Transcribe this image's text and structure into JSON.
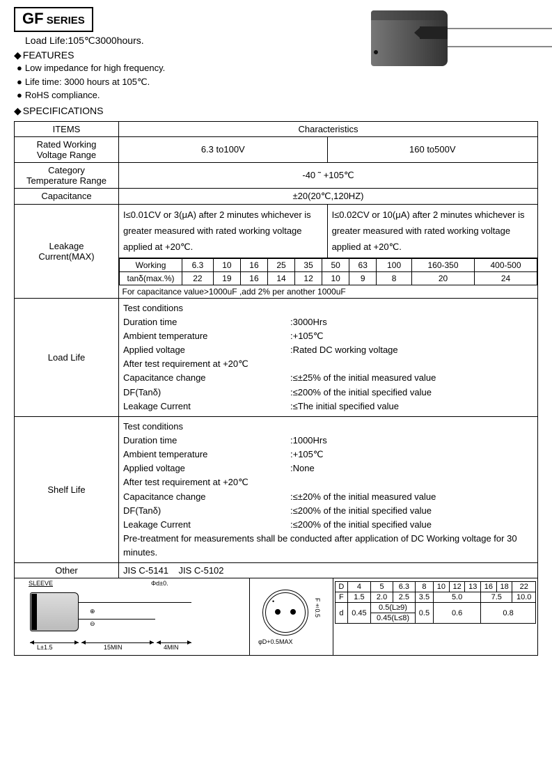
{
  "header": {
    "series_prefix": "GF",
    "series_suffix": " SERIES",
    "load_life_line": "Load Life:105℃3000hours.",
    "features_title": "FEATURES",
    "features": [
      "Low impedance for high frequency.",
      "Life time: 3000 hours at 105℃.",
      "RoHS compliance."
    ],
    "specs_title": "SPECIFICATIONS"
  },
  "spec": {
    "items_header": "ITEMS",
    "char_header": "Characteristics",
    "rows": {
      "rwvr_label": "Rated Working\nVoltage Range",
      "rwvr_v1": "6.3 to100V",
      "rwvr_v2": "160 to500V",
      "ctr_label": "Category\nTemperature Range",
      "ctr_val": "-40 ˜ +105℃",
      "cap_label": "Capacitance",
      "cap_val": "±20(20℃,120HZ)",
      "leak_label": "Leakage\nCurrent(MAX)",
      "leak_v1": "I≤0.01CV or 3(μA) after 2 minutes whichever is greater measured with rated working voltage applied at +20℃.",
      "leak_v2": "I≤0.02CV or 10(μA) after 2 minutes whichever is greater measured with rated working voltage applied at +20℃.",
      "tand_working": "Working",
      "tand_row_label": "tanδ(max.%)",
      "tand_headers": [
        "6.3",
        "10",
        "16",
        "25",
        "35",
        "50",
        "63",
        "100",
        "160-350",
        "400-500"
      ],
      "tand_values": [
        "22",
        "19",
        "16",
        "14",
        "12",
        "10",
        "9",
        "8",
        "20",
        "24"
      ],
      "tand_note": "For capacitance value>1000uF ,add 2% per another 1000uF",
      "load_label": "Load Life",
      "load_lines": [
        [
          "Test conditions",
          ""
        ],
        [
          "Duration time",
          ":3000Hrs"
        ],
        [
          "Ambient temperature",
          ":+105℃"
        ],
        [
          "Applied voltage",
          ":Rated DC working voltage"
        ],
        [
          "After test requirement at +20℃",
          ""
        ],
        [
          "Capacitance change",
          ":≤±25% of  the initial measured value"
        ],
        [
          "DF(Tanδ)",
          ":≤200% of  the initial specified value"
        ],
        [
          "Leakage Current",
          ":≤The initial specified value"
        ]
      ],
      "shelf_label": "Shelf Life",
      "shelf_lines": [
        [
          "Test conditions",
          ""
        ],
        [
          "Duration time",
          ":1000Hrs"
        ],
        [
          "Ambient temperature",
          ":+105℃"
        ],
        [
          "Applied voltage",
          ":None"
        ],
        [
          "After test requirement at +20℃",
          ""
        ],
        [
          "Capacitance change",
          ":≤±20% of  the initial measured value"
        ],
        [
          "DF(Tanδ)",
          ":≤200% of  the initial specified value"
        ],
        [
          "Leakage Current",
          ":≤200% of  the initial specified value"
        ]
      ],
      "shelf_note": "Pre-treatment for measurements shall be conducted after application of DC Working voltage for 30 minutes.",
      "other_label": "Other",
      "other_val": "JIS C-5141    JIS C-5102"
    }
  },
  "dims": {
    "sleeve": "SLEEVE",
    "phi_d": "Φd±0.",
    "L": "L±1.5",
    "m15": "15MIN",
    "m4": "4MIN",
    "F": "F±0.5",
    "phiD": "φD+0.5MAX",
    "plus": "⊕",
    "minus": "⊖",
    "dot": "•",
    "table": {
      "D_label": "D",
      "D": [
        "4",
        "5",
        "6.3",
        "8",
        "10",
        "12",
        "13",
        "16",
        "18",
        "22"
      ],
      "F_label": "F",
      "F": [
        "1.5",
        "2.0",
        "2.5",
        "3.5",
        "5.0",
        "5.0",
        "5.0",
        "7.5",
        "7.5",
        "10.0"
      ],
      "d_label": "d",
      "d_top": "0.5(L≥9)",
      "d_bot": "0.45(L≤8)",
      "d": [
        "0.45",
        "",
        "0.5",
        "0.6",
        "0.6",
        "0.6",
        "0.8",
        "0.8",
        "0.8"
      ]
    }
  }
}
